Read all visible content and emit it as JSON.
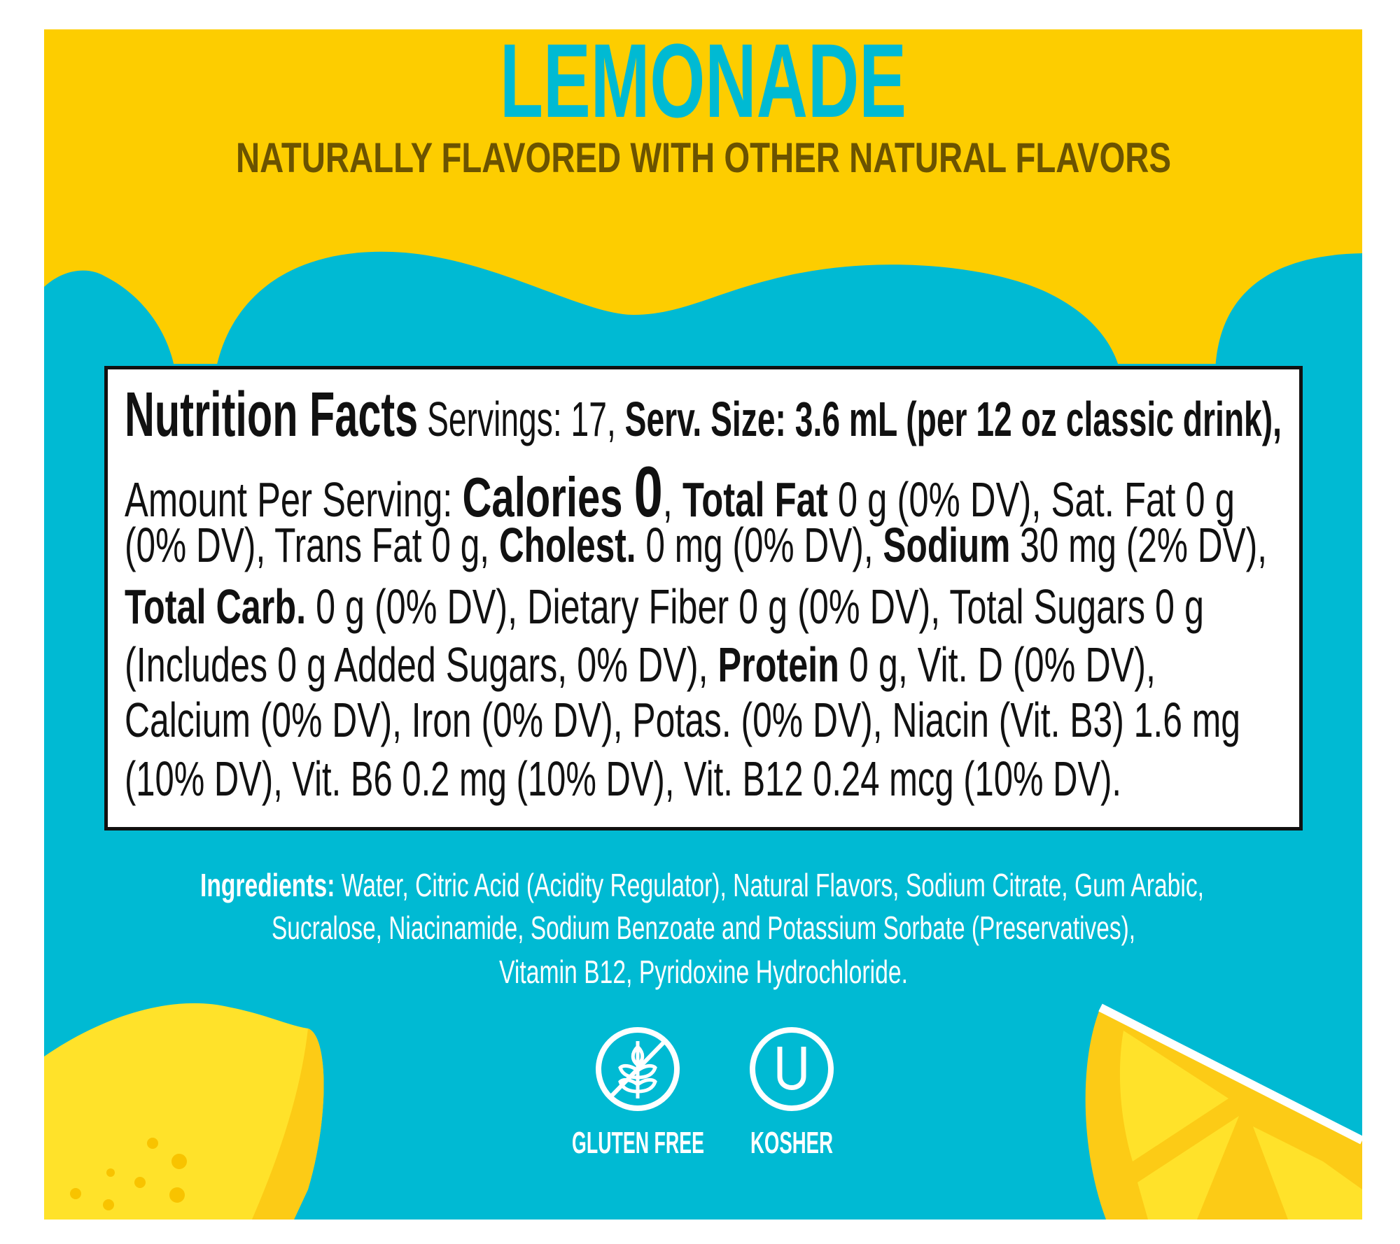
{
  "header": {
    "title": "LEMONADE",
    "subtitle": "NATURALLY FLAVORED WITH OTHER NATURAL FLAVORS"
  },
  "nutrition_facts": {
    "lines": [
      [
        {
          "t": "Nutrition Facts",
          "b": true,
          "c": "nf-title"
        },
        {
          "t": " Servings: 17, "
        },
        {
          "t": "Serv. Size: 3.6 mL (per 12 oz classic drink),",
          "b": true
        }
      ],
      [
        {
          "t": "Amount Per Serving: "
        },
        {
          "t": "Calories ",
          "b": true,
          "c": "cal"
        },
        {
          "t": "0",
          "b": true,
          "c": "cal0"
        },
        {
          "t": ", "
        },
        {
          "t": "Total Fat",
          "b": true
        },
        {
          "t": " 0 g (0% DV), Sat. Fat 0 g"
        }
      ],
      [
        {
          "t": "(0% DV), Trans Fat 0 g, "
        },
        {
          "t": "Cholest.",
          "b": true
        },
        {
          "t": " 0 mg (0% DV), "
        },
        {
          "t": "Sodium",
          "b": true
        },
        {
          "t": " 30 mg (2% DV),"
        }
      ],
      [
        {
          "t": "Total Carb.",
          "b": true
        },
        {
          "t": " 0 g (0% DV), Dietary Fiber 0 g (0% DV), Total Sugars 0 g"
        }
      ],
      [
        {
          "t": "(Includes 0 g Added Sugars, 0% DV), "
        },
        {
          "t": "Protein",
          "b": true
        },
        {
          "t": " 0 g, Vit. D (0% DV),"
        }
      ],
      [
        {
          "t": "Calcium (0% DV), Iron (0% DV), Potas. (0% DV), Niacin (Vit. B3) 1.6 mg"
        }
      ],
      [
        {
          "t": "(10% DV), Vit. B6 0.2 mg (10% DV), Vit. B12 0.24 mcg (10% DV)."
        }
      ]
    ]
  },
  "ingredients": {
    "label": "Ingredients:",
    "lines": [
      " Water, Citric Acid (Acidity Regulator), Natural Flavors, Sodium Citrate, Gum Arabic,",
      "Sucralose, Niacinamide, Sodium Benzoate and Potassium Sorbate (Preservatives),",
      "Vitamin B12, Pyridoxine Hydrochloride."
    ]
  },
  "badges": [
    {
      "icon": "gluten-free-wheat-crossed-icon",
      "label": "GLUTEN FREE"
    },
    {
      "icon": "kosher-u-icon",
      "label": "KOSHER"
    }
  ],
  "colors": {
    "yellow": "#FDCD00",
    "blue": "#00BAD3",
    "subtitle": "#6B5300",
    "lemon": "#FFE22A"
  }
}
